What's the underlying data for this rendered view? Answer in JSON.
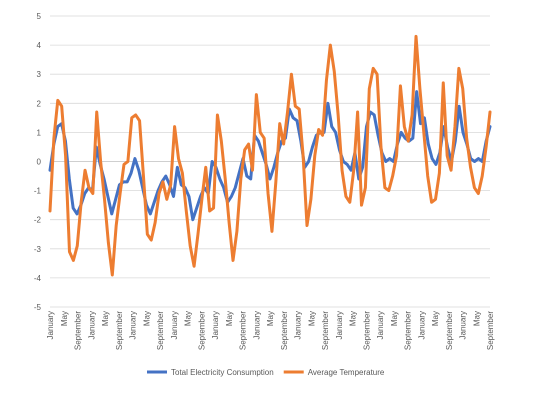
{
  "chart_data": {
    "type": "line",
    "title": "",
    "xlabel": "",
    "ylabel": "",
    "ylim": [
      -5,
      5
    ],
    "yticks": [
      -5,
      -4,
      -3,
      -2,
      -1,
      0,
      1,
      2,
      3,
      4,
      5
    ],
    "x_tick_labels": [
      "January",
      "May",
      "September",
      "January",
      "May",
      "September",
      "January",
      "May",
      "September",
      "January",
      "May",
      "September",
      "January",
      "May",
      "September",
      "January",
      "May",
      "September",
      "January",
      "May",
      "September",
      "January",
      "May",
      "September",
      "January",
      "May",
      "September",
      "January",
      "May",
      "September",
      "January",
      "May",
      "September"
    ],
    "grid": true,
    "legend_position": "bottom",
    "series": [
      {
        "name": "Total Electricity Consumption",
        "color": "#4472C4",
        "values": [
          -0.3,
          0.6,
          1.2,
          1.3,
          0.7,
          -0.6,
          -1.6,
          -1.8,
          -1.5,
          -1.1,
          -0.9,
          -1.0,
          0.5,
          -0.1,
          -0.6,
          -1.2,
          -1.8,
          -1.3,
          -0.8,
          -0.7,
          -0.7,
          -0.4,
          0.1,
          -0.3,
          -0.9,
          -1.5,
          -1.8,
          -1.4,
          -1.0,
          -0.7,
          -0.5,
          -0.8,
          -1.2,
          -0.2,
          -0.8,
          -0.9,
          -1.2,
          -2.0,
          -1.6,
          -1.2,
          -0.9,
          -1.1,
          0.0,
          -0.2,
          -0.6,
          -0.9,
          -1.4,
          -1.2,
          -0.9,
          -0.4,
          0.1,
          -0.5,
          -0.6,
          0.9,
          0.7,
          0.3,
          -0.1,
          -0.6,
          -0.2,
          0.3,
          0.7,
          0.8,
          1.8,
          1.5,
          1.4,
          0.7,
          -0.2,
          0.0,
          0.5,
          0.9,
          1.0,
          1.0,
          2.0,
          1.2,
          1.0,
          0.4,
          0.0,
          -0.1,
          -0.3,
          0.3,
          -0.6,
          -0.2,
          1.2,
          1.7,
          1.6,
          0.9,
          0.3,
          0.0,
          0.1,
          0.0,
          0.6,
          1.0,
          0.8,
          0.7,
          0.8,
          2.4,
          1.3,
          1.5,
          0.6,
          0.1,
          -0.1,
          0.3,
          1.2,
          0.5,
          0.0,
          0.7,
          1.9,
          1.0,
          0.6,
          0.1,
          0.0,
          0.1,
          0.0,
          0.7,
          1.2
        ]
      },
      {
        "name": "Average Temperature",
        "color": "#ED7D31",
        "values": [
          -1.7,
          0.8,
          2.1,
          1.9,
          0.2,
          -3.1,
          -3.4,
          -2.9,
          -1.4,
          -0.3,
          -0.9,
          -1.1,
          1.7,
          0.0,
          -1.3,
          -2.8,
          -3.9,
          -2.2,
          -1.1,
          -0.1,
          0.0,
          1.5,
          1.6,
          1.4,
          -0.5,
          -2.5,
          -2.7,
          -2.1,
          -1.1,
          -0.7,
          -1.3,
          -0.8,
          1.2,
          0.1,
          -0.4,
          -1.7,
          -2.9,
          -3.6,
          -2.5,
          -1.3,
          -0.2,
          -1.7,
          -1.6,
          1.6,
          0.7,
          -0.6,
          -2.1,
          -3.4,
          -2.4,
          -0.6,
          0.4,
          0.6,
          -0.3,
          2.3,
          1.0,
          0.8,
          -1.1,
          -2.4,
          -0.7,
          1.3,
          0.6,
          1.7,
          3.0,
          1.9,
          1.8,
          0.2,
          -2.2,
          -1.3,
          0.2,
          1.1,
          0.9,
          2.8,
          4.0,
          3.1,
          1.6,
          -0.3,
          -1.2,
          -1.4,
          -0.3,
          1.7,
          -1.5,
          -0.9,
          2.5,
          3.2,
          3.0,
          0.5,
          -0.9,
          -1.0,
          -0.5,
          0.2,
          2.6,
          1.2,
          0.7,
          1.6,
          4.3,
          2.5,
          1.0,
          -0.5,
          -1.4,
          -1.3,
          -0.4,
          2.7,
          0.2,
          -0.3,
          1.2,
          3.2,
          2.5,
          0.8,
          -0.2,
          -0.9,
          -1.1,
          -0.5,
          0.5,
          1.7
        ]
      }
    ]
  }
}
